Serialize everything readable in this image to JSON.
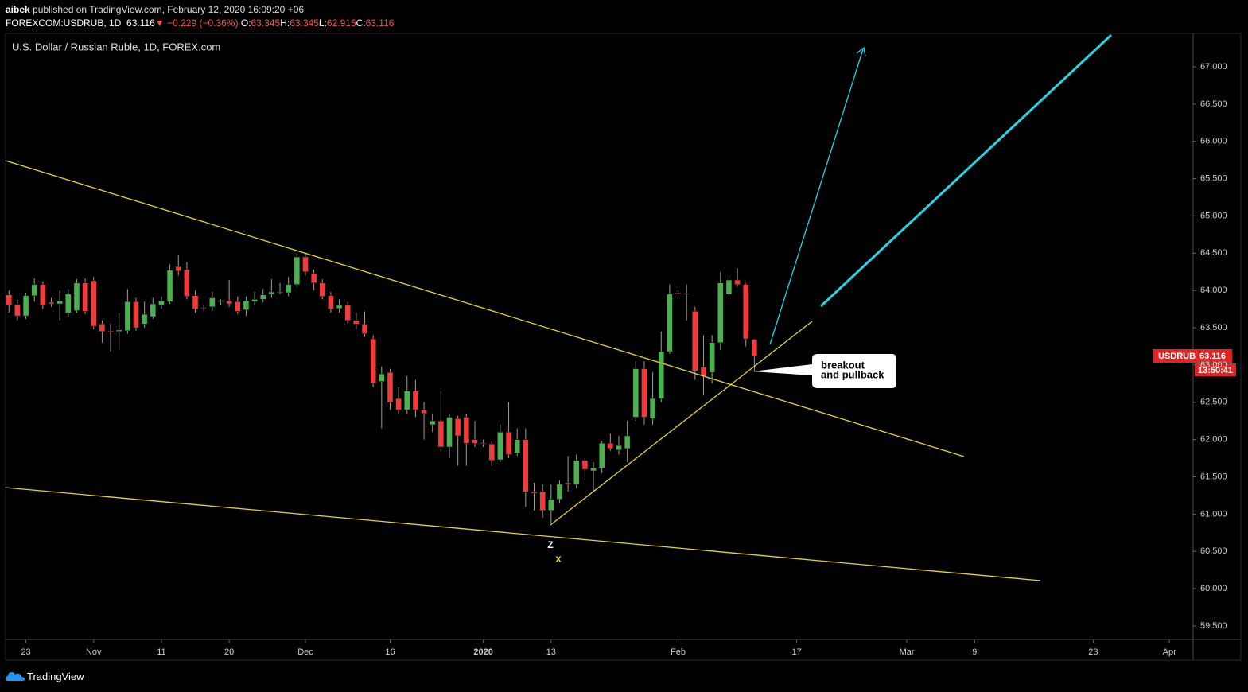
{
  "header": {
    "author": "aibek",
    "published": " published on TradingView.com, February 12, 2020 16:09:20 +06",
    "symbol": "FOREXCOM:USDRUB, 1D",
    "last": "63.116",
    "arrow": "▼",
    "change": "−0.229 (−0.36%)",
    "ohlc": [
      {
        "label": "O:",
        "value": "63.345"
      },
      {
        "label": "H:",
        "value": "63.345"
      },
      {
        "label": "L:",
        "value": "62.915"
      },
      {
        "label": "C:",
        "value": "63.116"
      }
    ]
  },
  "footer": {
    "brand": "TradingView"
  },
  "chart_data": {
    "type": "candlestick",
    "title": "U.S. Dollar / Russian Ruble, 1D, FOREX.com",
    "symbol_label": "USDRUB",
    "countdown": "13:50:41",
    "up_color": "#4caf50",
    "down_color": "#ef3b3b",
    "wick_color": "#9e9e9e",
    "open": [
      63.94,
      63.81,
      63.66,
      63.93,
      64.08,
      63.84,
      63.82,
      63.7,
      63.73,
      64.1,
      64.13,
      63.55,
      63.46,
      63.45,
      63.46,
      63.85,
      63.55,
      63.65,
      63.8,
      63.85,
      64.32,
      64.28,
      63.93,
      63.77,
      63.78,
      63.85,
      63.86,
      63.85,
      63.74,
      63.85,
      63.88,
      63.95,
      63.98,
      63.97,
      64.08,
      64.45,
      64.23,
      64.1,
      63.93,
      63.76,
      63.8,
      63.6,
      63.55,
      63.35,
      62.78,
      62.9,
      62.55,
      62.4,
      62.65,
      62.4,
      62.2,
      62.25,
      61.9,
      62.28,
      62.3,
      62.0,
      61.95,
      61.94,
      61.73,
      62.1,
      61.82,
      62.0,
      61.3,
      61.3,
      61.05,
      61.2,
      61.42,
      61.4,
      61.72,
      61.58,
      61.62,
      61.95,
      61.86,
      61.88,
      62.3,
      62.95,
      62.28,
      62.55,
      63.18,
      63.97,
      63.96,
      63.72,
      62.98,
      62.9,
      63.3,
      63.95,
      64.14,
      64.08,
      63.345
    ],
    "high": [
      64.0,
      63.88,
      63.97,
      64.16,
      64.12,
      63.9,
      64.0,
      64.02,
      64.15,
      64.16,
      64.18,
      63.6,
      63.55,
      63.7,
      64.02,
      63.9,
      63.85,
      63.9,
      63.92,
      64.35,
      64.48,
      64.38,
      64.0,
      63.8,
      63.98,
      63.88,
      64.14,
      63.92,
      63.92,
      63.98,
      64.02,
      64.15,
      64.1,
      64.18,
      64.49,
      64.51,
      64.28,
      64.15,
      63.98,
      63.88,
      63.85,
      63.7,
      63.72,
      63.4,
      62.98,
      62.95,
      62.7,
      62.85,
      62.8,
      62.5,
      62.35,
      62.65,
      62.35,
      62.32,
      62.35,
      62.25,
      62.0,
      61.98,
      62.2,
      62.5,
      62.15,
      62.15,
      61.42,
      61.4,
      61.4,
      61.45,
      61.78,
      61.8,
      61.75,
      61.7,
      61.98,
      62.08,
      62.05,
      62.25,
      63.05,
      63.05,
      62.9,
      63.45,
      64.08,
      64.0,
      64.08,
      63.78,
      63.4,
      63.4,
      64.25,
      64.22,
      64.3,
      64.1,
      63.345
    ],
    "low": [
      63.7,
      63.6,
      63.62,
      63.85,
      63.75,
      63.78,
      63.6,
      63.64,
      63.7,
      63.68,
      63.48,
      63.3,
      63.18,
      63.2,
      63.42,
      63.46,
      63.5,
      63.62,
      63.75,
      63.82,
      64.2,
      63.88,
      63.7,
      63.72,
      63.72,
      63.8,
      63.78,
      63.68,
      63.66,
      63.8,
      63.84,
      63.9,
      63.95,
      63.92,
      64.05,
      64.2,
      64.0,
      63.88,
      63.7,
      63.7,
      63.55,
      63.48,
      63.38,
      62.7,
      62.15,
      62.4,
      62.35,
      62.35,
      62.3,
      62.0,
      62.1,
      61.85,
      61.75,
      61.65,
      61.65,
      61.9,
      61.9,
      61.65,
      61.7,
      61.75,
      61.78,
      61.1,
      61.05,
      60.95,
      60.88,
      61.15,
      61.3,
      61.35,
      61.45,
      61.3,
      61.55,
      61.85,
      61.8,
      61.7,
      62.25,
      62.2,
      62.2,
      62.5,
      63.15,
      63.92,
      63.6,
      62.8,
      62.6,
      62.75,
      63.2,
      63.92,
      64.05,
      63.25,
      62.915
    ],
    "close": [
      63.8,
      63.66,
      63.93,
      64.08,
      63.8,
      63.82,
      63.86,
      63.95,
      64.1,
      63.72,
      63.52,
      63.45,
      63.45,
      63.47,
      63.85,
      63.5,
      63.68,
      63.82,
      63.86,
      64.27,
      64.26,
      63.92,
      63.75,
      63.76,
      63.9,
      63.86,
      63.82,
      63.72,
      63.86,
      63.88,
      63.94,
      63.98,
      63.98,
      64.08,
      64.45,
      64.25,
      64.1,
      63.92,
      63.75,
      63.8,
      63.6,
      63.55,
      63.42,
      62.75,
      62.88,
      62.5,
      62.4,
      62.65,
      62.4,
      62.35,
      62.25,
      61.9,
      62.3,
      62.05,
      61.95,
      61.95,
      61.94,
      61.72,
      62.1,
      61.8,
      62.0,
      61.3,
      61.28,
      61.05,
      61.2,
      61.4,
      61.4,
      61.72,
      61.6,
      61.62,
      61.95,
      61.88,
      61.92,
      62.05,
      62.95,
      62.3,
      62.55,
      63.18,
      63.95,
      63.96,
      63.95,
      62.92,
      62.85,
      63.3,
      64.1,
      64.14,
      64.08,
      63.35,
      63.116
    ],
    "xlim": [
      -0.4,
      139.8
    ],
    "xticks": [
      {
        "value": 2,
        "label": "23"
      },
      {
        "value": 10,
        "label": "Nov"
      },
      {
        "value": 18,
        "label": "11"
      },
      {
        "value": 26,
        "label": "20"
      },
      {
        "value": 35,
        "label": "Dec"
      },
      {
        "value": 45,
        "label": "16"
      },
      {
        "value": 56,
        "label": "2020"
      },
      {
        "value": 64,
        "label": "13"
      },
      {
        "value": 79,
        "label": "Feb"
      },
      {
        "value": 93,
        "label": "17"
      },
      {
        "value": 106,
        "label": "Mar"
      },
      {
        "value": 114,
        "label": "9"
      },
      {
        "value": 128,
        "label": "23"
      },
      {
        "value": 137,
        "label": "Apr"
      }
    ],
    "ylim": [
      59.318,
      67.448
    ],
    "yticks": [
      {
        "value": 59.5,
        "label": "59.500"
      },
      {
        "value": 60,
        "label": "60.000"
      },
      {
        "value": 60.5,
        "label": "60.500"
      },
      {
        "value": 61,
        "label": "61.000"
      },
      {
        "value": 61.5,
        "label": "61.500"
      },
      {
        "value": 62,
        "label": "62.000"
      },
      {
        "value": 62.5,
        "label": "62.500"
      },
      {
        "value": 63,
        "label": "63.000"
      },
      {
        "value": 63.5,
        "label": "63.500"
      },
      {
        "value": 64,
        "label": "64.000"
      },
      {
        "value": 64.5,
        "label": "64.500"
      },
      {
        "value": 65,
        "label": "65.000"
      },
      {
        "value": 65.5,
        "label": "65.500"
      },
      {
        "value": 66,
        "label": "66.000"
      },
      {
        "value": 66.5,
        "label": "66.500"
      },
      {
        "value": 67,
        "label": "67.000"
      }
    ],
    "annotations": {
      "callout": [
        "breakout",
        "and pullback"
      ],
      "wave_z": "Z",
      "wave_x": "x"
    }
  }
}
